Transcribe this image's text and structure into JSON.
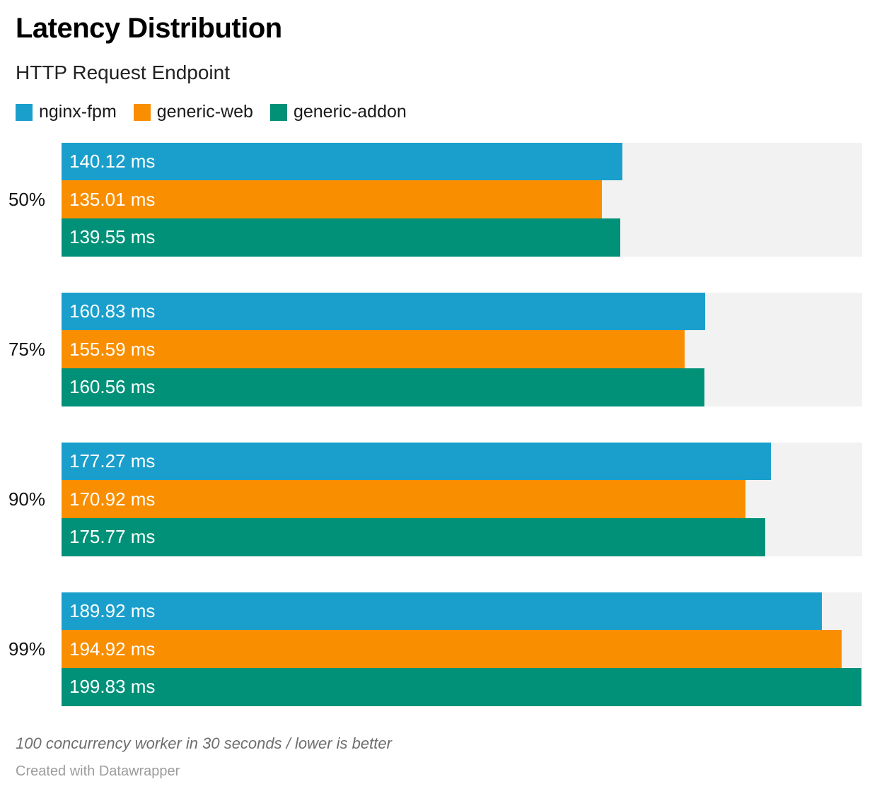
{
  "chart_data": {
    "type": "bar",
    "orientation": "horizontal",
    "title": "Latency Distribution",
    "subtitle": "HTTP Request Endpoint",
    "categories": [
      "50%",
      "75%",
      "90%",
      "99%"
    ],
    "series": [
      {
        "name": "nginx-fpm",
        "color": "#1a9fcc",
        "values": [
          140.12,
          160.83,
          177.27,
          189.92
        ]
      },
      {
        "name": "generic-web",
        "color": "#f98e00",
        "values": [
          135.01,
          155.59,
          170.92,
          194.92
        ]
      },
      {
        "name": "generic-addon",
        "color": "#009178",
        "values": [
          139.55,
          160.56,
          175.77,
          199.83
        ]
      }
    ],
    "value_suffix": " ms",
    "value_decimals": 2,
    "xlim": [
      0,
      200
    ],
    "xlabel": "",
    "ylabel": "",
    "grid": false,
    "legend_position": "top",
    "value_labels": "inside-start",
    "track_color": "#f2f2f2"
  },
  "footer": {
    "note": "100 concurrency worker in 30 seconds / lower is better",
    "attribution": "Created with Datawrapper"
  }
}
